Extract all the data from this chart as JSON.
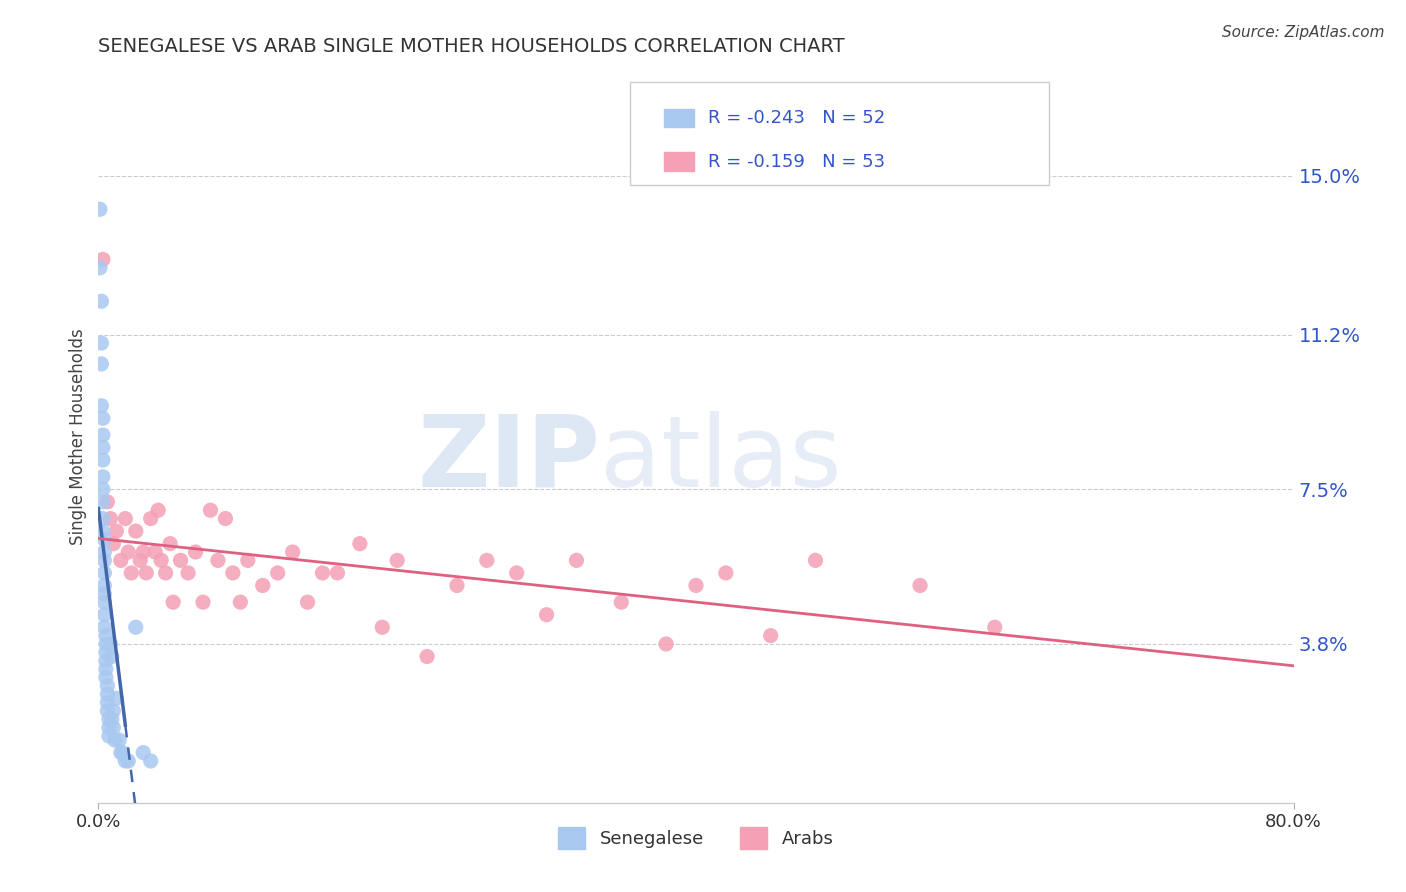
{
  "title": "SENEGALESE VS ARAB SINGLE MOTHER HOUSEHOLDS CORRELATION CHART",
  "source": "Source: ZipAtlas.com",
  "ylabel": "Single Mother Households",
  "xlim": [
    0.0,
    0.8
  ],
  "ylim": [
    0.0,
    0.175
  ],
  "yticks": [
    0.038,
    0.075,
    0.112,
    0.15
  ],
  "ytick_labels": [
    "3.8%",
    "7.5%",
    "11.2%",
    "15.0%"
  ],
  "xticks": [
    0.0,
    0.8
  ],
  "xtick_labels": [
    "0.0%",
    "80.0%"
  ],
  "legend_r1": "R = -0.243",
  "legend_n1": "N = 52",
  "legend_r2": "R = -0.159",
  "legend_n2": "N = 53",
  "senegalese_color": "#a8c8f0",
  "arab_color": "#f4a0b5",
  "senegalese_line_color": "#4466aa",
  "arab_line_color": "#e06080",
  "background_color": "#ffffff",
  "grid_color": "#cccccc",
  "senegalese_x": [
    0.001,
    0.001,
    0.002,
    0.002,
    0.002,
    0.002,
    0.003,
    0.003,
    0.003,
    0.003,
    0.003,
    0.003,
    0.003,
    0.003,
    0.003,
    0.004,
    0.004,
    0.004,
    0.004,
    0.004,
    0.004,
    0.004,
    0.004,
    0.004,
    0.005,
    0.005,
    0.005,
    0.005,
    0.005,
    0.005,
    0.006,
    0.006,
    0.006,
    0.006,
    0.007,
    0.007,
    0.007,
    0.008,
    0.009,
    0.009,
    0.01,
    0.01,
    0.011,
    0.012,
    0.014,
    0.015,
    0.016,
    0.018,
    0.02,
    0.025,
    0.03,
    0.035
  ],
  "senegalese_y": [
    0.142,
    0.128,
    0.12,
    0.11,
    0.105,
    0.095,
    0.092,
    0.088,
    0.085,
    0.082,
    0.078,
    0.075,
    0.072,
    0.068,
    0.065,
    0.063,
    0.06,
    0.058,
    0.055,
    0.052,
    0.05,
    0.048,
    0.045,
    0.042,
    0.04,
    0.038,
    0.036,
    0.034,
    0.032,
    0.03,
    0.028,
    0.026,
    0.024,
    0.022,
    0.02,
    0.018,
    0.016,
    0.038,
    0.035,
    0.02,
    0.022,
    0.018,
    0.015,
    0.025,
    0.015,
    0.012,
    0.012,
    0.01,
    0.01,
    0.042,
    0.012,
    0.01
  ],
  "arab_x": [
    0.003,
    0.006,
    0.008,
    0.01,
    0.012,
    0.015,
    0.018,
    0.02,
    0.022,
    0.025,
    0.028,
    0.03,
    0.032,
    0.035,
    0.038,
    0.04,
    0.042,
    0.045,
    0.048,
    0.05,
    0.055,
    0.06,
    0.065,
    0.07,
    0.075,
    0.08,
    0.085,
    0.09,
    0.095,
    0.1,
    0.11,
    0.12,
    0.13,
    0.14,
    0.15,
    0.16,
    0.175,
    0.19,
    0.2,
    0.22,
    0.24,
    0.26,
    0.28,
    0.3,
    0.32,
    0.35,
    0.38,
    0.4,
    0.42,
    0.45,
    0.48,
    0.55,
    0.6
  ],
  "arab_y": [
    0.13,
    0.072,
    0.068,
    0.062,
    0.065,
    0.058,
    0.068,
    0.06,
    0.055,
    0.065,
    0.058,
    0.06,
    0.055,
    0.068,
    0.06,
    0.07,
    0.058,
    0.055,
    0.062,
    0.048,
    0.058,
    0.055,
    0.06,
    0.048,
    0.07,
    0.058,
    0.068,
    0.055,
    0.048,
    0.058,
    0.052,
    0.055,
    0.06,
    0.048,
    0.055,
    0.055,
    0.062,
    0.042,
    0.058,
    0.035,
    0.052,
    0.058,
    0.055,
    0.045,
    0.058,
    0.048,
    0.038,
    0.052,
    0.055,
    0.04,
    0.058,
    0.052,
    0.042
  ]
}
